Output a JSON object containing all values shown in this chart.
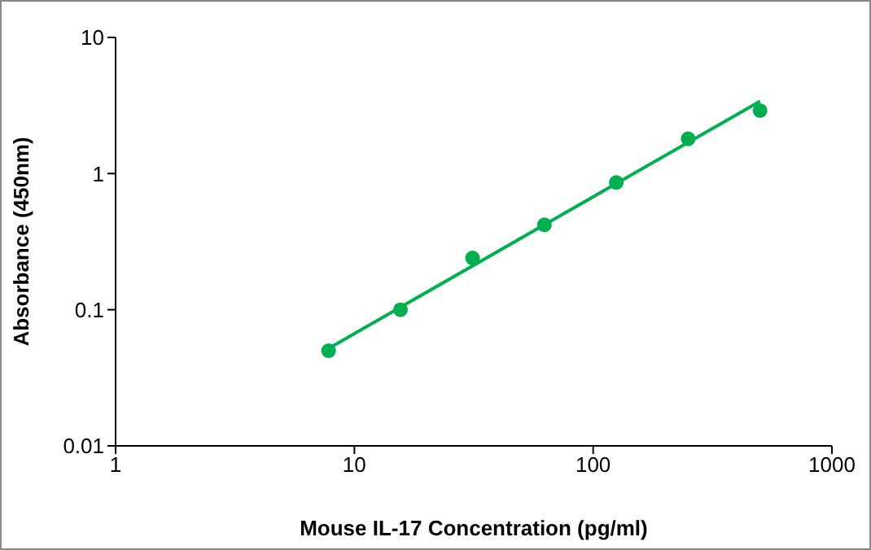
{
  "chart_data": {
    "type": "scatter",
    "xlabel": "Mouse IL-17 Concentration (pg/ml)",
    "ylabel": "Absorbance (450nm)",
    "x": [
      7.8,
      15.6,
      31.25,
      62.5,
      125,
      250,
      500
    ],
    "series": [
      {
        "color": "#00b050",
        "marker": "circle",
        "values": [
          0.05,
          0.1,
          0.24,
          0.42,
          0.86,
          1.8,
          2.9
        ]
      },
      {
        "type": "line",
        "color": "#00b050",
        "marker": "none",
        "x": [
          7.8,
          500
        ],
        "values": [
          0.052,
          3.4
        ]
      }
    ],
    "log": "xy",
    "xlim": [
      1,
      1000
    ],
    "xticks": [
      1,
      10,
      100,
      1000
    ],
    "ylim": [
      0.01,
      10
    ],
    "yticks": [
      0.01,
      0.1,
      1,
      10
    ],
    "grid": false
  }
}
